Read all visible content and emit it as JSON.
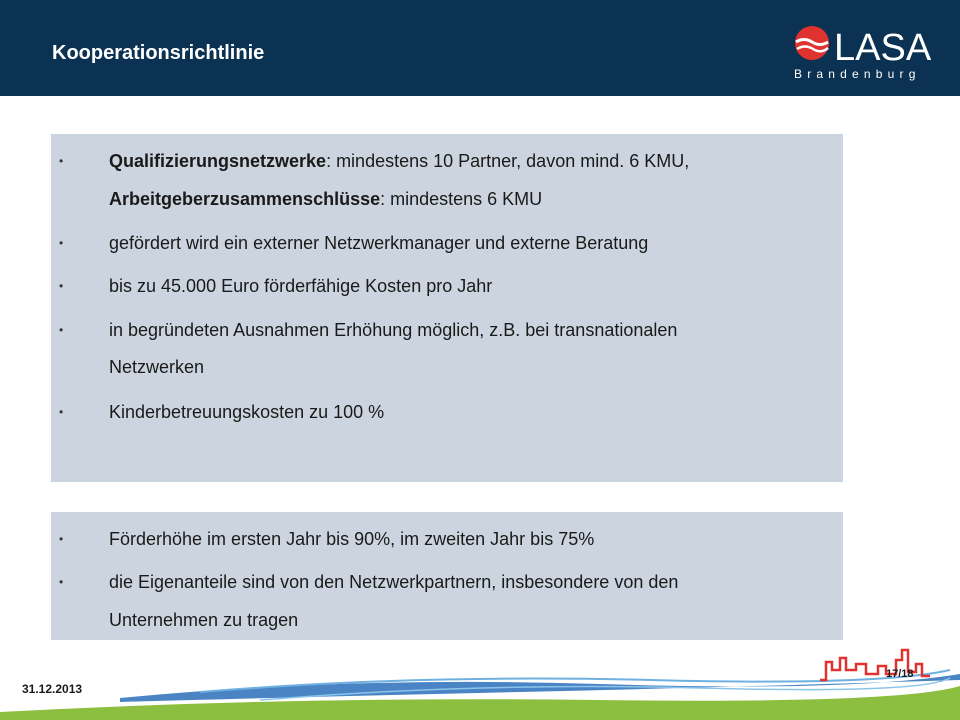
{
  "header": {
    "title": "Kooperationsrichtlinie",
    "logo": {
      "name": "LASA",
      "sub": "Brandenburg",
      "brand_color": "#e0322e"
    },
    "background": "#0b3252"
  },
  "box1": {
    "items": [
      {
        "bold": "Qualifizierungsnetzwerke",
        "text": ": mindestens 10 Partner, davon mind. 6 KMU,"
      },
      {
        "bold": "Arbeitgeberzusammenschlüsse",
        "text": ": mindestens 6 KMU"
      },
      {
        "text": "gefördert wird ein externer Netzwerkmanager und externe Beratung"
      },
      {
        "text": "bis zu 45.000 Euro förderfähige Kosten pro Jahr"
      },
      {
        "text": "in begründeten Ausnahmen Erhöhung möglich, z.B. bei transnationalen"
      },
      {
        "text": "Netzwerken"
      },
      {
        "text": "Kinderbetreuungskosten zu 100 %"
      }
    ]
  },
  "box2": {
    "items": [
      {
        "text": "Förderhöhe im ersten Jahr bis 90%, im zweiten Jahr bis 75%"
      },
      {
        "text": "die Eigenanteile sind von den Netzwerkpartnern, insbesondere von den"
      },
      {
        "text": "Unternehmen zu tragen"
      }
    ]
  },
  "footer": {
    "date": "31.12.2013",
    "page": "17/18"
  },
  "colors": {
    "box_bg": "#ccd5df",
    "green": "#8cbf3f",
    "blue": "#2a6ebb"
  }
}
